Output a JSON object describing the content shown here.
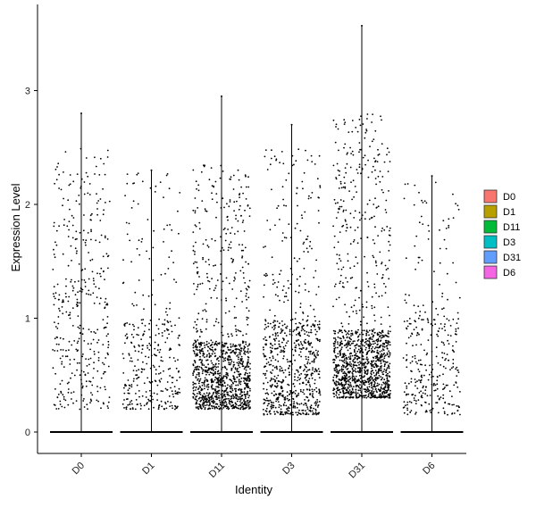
{
  "chart_data": {
    "type": "violin-jitter",
    "title": "",
    "xlabel": "Identity",
    "ylabel": "Expression Level",
    "categories": [
      "D0",
      "D1",
      "D11",
      "D3",
      "D31",
      "D6"
    ],
    "ylim": [
      -0.2,
      3.7
    ],
    "yticks": [
      0,
      1,
      2,
      3
    ],
    "grid": false,
    "legend_position": "right",
    "legend": [
      {
        "label": "D0",
        "color": "#F8766D"
      },
      {
        "label": "D1",
        "color": "#B79F00"
      },
      {
        "label": "D11",
        "color": "#00BA38"
      },
      {
        "label": "D3",
        "color": "#00BFC4"
      },
      {
        "label": "D31",
        "color": "#619CFF"
      },
      {
        "label": "D6",
        "color": "#F564E3"
      }
    ],
    "series": [
      {
        "category": "D0",
        "max": 2.8,
        "nonzero_min": 0.2,
        "nonzero_max": 2.5,
        "dense_upper": 1.4,
        "point_count": 380
      },
      {
        "category": "D1",
        "max": 2.3,
        "nonzero_min": 0.2,
        "nonzero_max": 2.3,
        "dense_upper": 1.0,
        "point_count": 340
      },
      {
        "category": "D11",
        "max": 2.95,
        "nonzero_min": 0.2,
        "nonzero_max": 2.35,
        "dense_upper": 0.8,
        "point_count": 1150
      },
      {
        "category": "D3",
        "max": 2.7,
        "nonzero_min": 0.15,
        "nonzero_max": 2.5,
        "dense_upper": 1.0,
        "point_count": 760
      },
      {
        "category": "D31",
        "max": 3.57,
        "nonzero_min": 0.3,
        "nonzero_max": 2.8,
        "dense_upper": 0.9,
        "point_count": 1300
      },
      {
        "category": "D6",
        "max": 2.25,
        "nonzero_min": 0.15,
        "nonzero_max": 2.2,
        "dense_upper": 1.0,
        "point_count": 330
      }
    ]
  }
}
